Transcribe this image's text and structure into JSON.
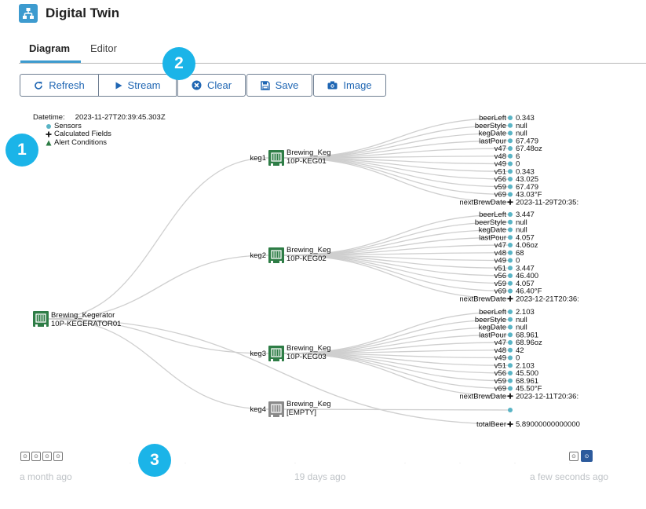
{
  "app": {
    "title": "Digital Twin"
  },
  "tabs": [
    {
      "label": "Diagram",
      "active": true
    },
    {
      "label": "Editor",
      "active": false
    }
  ],
  "toolbar": {
    "refresh": "Refresh",
    "stream": "Stream",
    "clear": "Clear",
    "save": "Save",
    "image": "Image"
  },
  "badges": [
    "1",
    "2",
    "3"
  ],
  "info": {
    "datetime_label": "Datetime:",
    "datetime_value": "2023-11-27T20:39:45.303Z",
    "legend": [
      {
        "label": "Sensors",
        "marker": "circle"
      },
      {
        "label": "Calculated Fields",
        "marker": "plus"
      },
      {
        "label": "Alert Conditions",
        "marker": "triangle"
      }
    ]
  },
  "root": {
    "name": "Brewing_Kegerator",
    "id": "10P-KEGERATOR01"
  },
  "kegs": [
    {
      "edge": "keg1",
      "name": "Brewing_Keg",
      "id": "10P-KEG01",
      "empty": false,
      "sensors": [
        {
          "key": "beerLeft",
          "value": "0.343",
          "marker": "circle"
        },
        {
          "key": "beerStyle",
          "value": "null",
          "marker": "circle"
        },
        {
          "key": "kegDate",
          "value": "null",
          "marker": "circle"
        },
        {
          "key": "lastPour",
          "value": "67.479",
          "marker": "circle"
        },
        {
          "key": "v47",
          "value": "67.48oz",
          "marker": "circle"
        },
        {
          "key": "v48",
          "value": "6",
          "marker": "circle"
        },
        {
          "key": "v49",
          "value": "0",
          "marker": "circle"
        },
        {
          "key": "v51",
          "value": "0.343",
          "marker": "circle"
        },
        {
          "key": "v56",
          "value": "43.025",
          "marker": "circle"
        },
        {
          "key": "v59",
          "value": "67.479",
          "marker": "circle"
        },
        {
          "key": "v69",
          "value": "43.03°F",
          "marker": "circle"
        },
        {
          "key": "nextBrewDate",
          "value": "2023-11-29T20:35:",
          "marker": "plus"
        }
      ]
    },
    {
      "edge": "keg2",
      "name": "Brewing_Keg",
      "id": "10P-KEG02",
      "empty": false,
      "sensors": [
        {
          "key": "beerLeft",
          "value": "3.447",
          "marker": "circle"
        },
        {
          "key": "beerStyle",
          "value": "null",
          "marker": "circle"
        },
        {
          "key": "kegDate",
          "value": "null",
          "marker": "circle"
        },
        {
          "key": "lastPour",
          "value": "4.057",
          "marker": "circle"
        },
        {
          "key": "v47",
          "value": "4.06oz",
          "marker": "circle"
        },
        {
          "key": "v48",
          "value": "68",
          "marker": "circle"
        },
        {
          "key": "v49",
          "value": "0",
          "marker": "circle"
        },
        {
          "key": "v51",
          "value": "3.447",
          "marker": "circle"
        },
        {
          "key": "v56",
          "value": "46.400",
          "marker": "circle"
        },
        {
          "key": "v59",
          "value": "4.057",
          "marker": "circle"
        },
        {
          "key": "v69",
          "value": "46.40°F",
          "marker": "circle"
        },
        {
          "key": "nextBrewDate",
          "value": "2023-12-21T20:36:",
          "marker": "plus"
        }
      ]
    },
    {
      "edge": "keg3",
      "name": "Brewing_Keg",
      "id": "10P-KEG03",
      "empty": false,
      "sensors": [
        {
          "key": "beerLeft",
          "value": "2.103",
          "marker": "circle"
        },
        {
          "key": "beerStyle",
          "value": "null",
          "marker": "circle"
        },
        {
          "key": "kegDate",
          "value": "null",
          "marker": "circle"
        },
        {
          "key": "lastPour",
          "value": "68.961",
          "marker": "circle"
        },
        {
          "key": "v47",
          "value": "68.96oz",
          "marker": "circle"
        },
        {
          "key": "v48",
          "value": "42",
          "marker": "circle"
        },
        {
          "key": "v49",
          "value": "0",
          "marker": "circle"
        },
        {
          "key": "v51",
          "value": "2.103",
          "marker": "circle"
        },
        {
          "key": "v56",
          "value": "45.500",
          "marker": "circle"
        },
        {
          "key": "v59",
          "value": "68.961",
          "marker": "circle"
        },
        {
          "key": "v69",
          "value": "45.50°F",
          "marker": "circle"
        },
        {
          "key": "nextBrewDate",
          "value": "2023-12-11T20:36:",
          "marker": "plus"
        }
      ]
    },
    {
      "edge": "keg4",
      "name": "Brewing_Keg",
      "id": "[EMPTY]",
      "empty": true,
      "sensors": [
        {
          "key": "",
          "value": "",
          "marker": "circle"
        }
      ]
    }
  ],
  "root_fields": [
    {
      "key": "totalBeer",
      "value": "5.89000000000000",
      "marker": "plus"
    }
  ],
  "timeline": {
    "labels": [
      "a month ago",
      "19 days ago",
      "a few seconds ago"
    ],
    "active_button": 2
  },
  "colors": {
    "accent": "#3d9bcf",
    "node": "#2e7d46",
    "node_empty": "#8a8a8a",
    "sensor": "#5ab4c5",
    "badge": "#1bb4e8",
    "link": "#cfcfcf"
  }
}
